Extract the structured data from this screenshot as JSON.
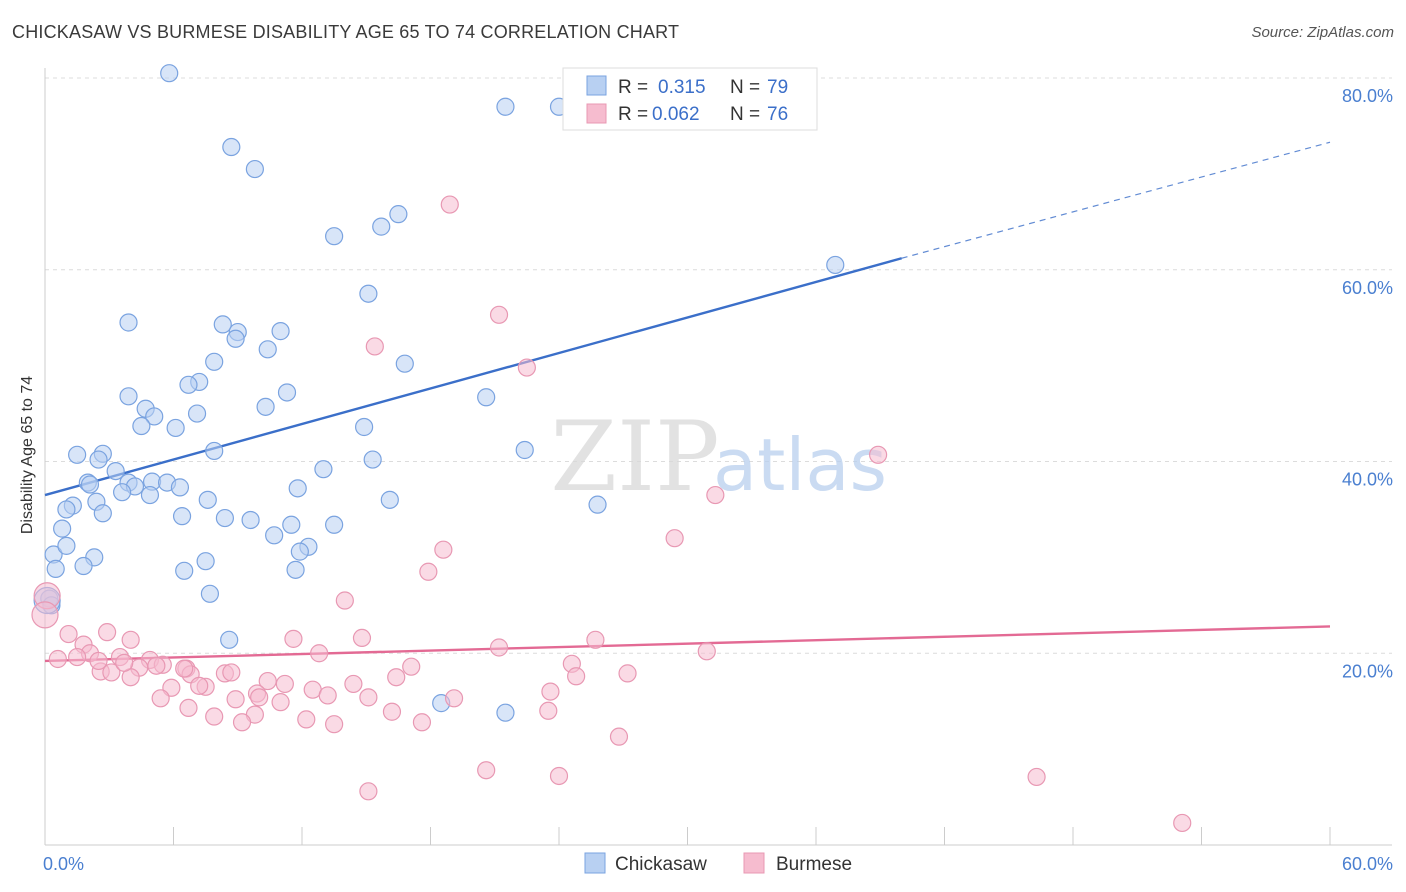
{
  "title": "CHICKASAW VS BURMESE DISABILITY AGE 65 TO 74 CORRELATION CHART",
  "source": "Source: ZipAtlas.com",
  "watermark": {
    "zip": "ZIP",
    "atlas": "atlas"
  },
  "colors": {
    "chickasaw": "#3b6fc9",
    "chickasaw_fill": "#b8d0f2",
    "burmese": "#e36a94",
    "burmese_fill": "#f6bccf",
    "axis_text": "#4a7fd0"
  },
  "chart_data": {
    "type": "scatter",
    "ylabel": "Disability Age 65 to 74",
    "xlim": [
      0,
      60
    ],
    "ylim": [
      0,
      80
    ],
    "x_tick_labels": [
      "0.0%",
      "60.0%"
    ],
    "y_tick_labels": [
      "20.0%",
      "40.0%",
      "60.0%",
      "80.0%"
    ],
    "y_ticks": [
      20,
      40,
      60,
      80
    ],
    "legend": {
      "position": "top-center",
      "rows": [
        {
          "r_label": "R =",
          "r_value": "0.315",
          "n_label": "N =",
          "n_value": "79"
        },
        {
          "r_label": "R =",
          "r_value": "0.062",
          "n_label": "N =",
          "n_value": "76"
        }
      ]
    },
    "series": [
      {
        "name": "Chickasaw",
        "trend": {
          "x0": 0,
          "y0": 36.5,
          "x1": 40,
          "y1": 61.2,
          "dashed_to_x": 60,
          "dashed_to_y": 73.3
        },
        "points": [
          [
            5.8,
            80.5
          ],
          [
            21.5,
            77.0
          ],
          [
            24.0,
            77.0
          ],
          [
            8.7,
            72.8
          ],
          [
            9.8,
            70.5
          ],
          [
            13.5,
            63.5
          ],
          [
            15.7,
            64.5
          ],
          [
            16.5,
            65.8
          ],
          [
            36.9,
            60.5
          ],
          [
            15.1,
            57.5
          ],
          [
            3.9,
            54.5
          ],
          [
            8.3,
            54.3
          ],
          [
            9.0,
            53.5
          ],
          [
            8.9,
            52.8
          ],
          [
            11.0,
            53.6
          ],
          [
            10.4,
            51.7
          ],
          [
            7.9,
            50.4
          ],
          [
            16.8,
            50.2
          ],
          [
            7.2,
            48.3
          ],
          [
            6.7,
            48.0
          ],
          [
            11.3,
            47.2
          ],
          [
            3.9,
            46.8
          ],
          [
            20.6,
            46.7
          ],
          [
            4.7,
            45.5
          ],
          [
            10.3,
            45.7
          ],
          [
            7.1,
            45.0
          ],
          [
            5.1,
            44.7
          ],
          [
            4.5,
            43.7
          ],
          [
            6.1,
            43.5
          ],
          [
            14.9,
            43.6
          ],
          [
            1.5,
            40.7
          ],
          [
            2.7,
            40.8
          ],
          [
            7.9,
            41.1
          ],
          [
            22.4,
            41.2
          ],
          [
            2.5,
            40.2
          ],
          [
            15.3,
            40.2
          ],
          [
            13.0,
            39.2
          ],
          [
            3.3,
            39.0
          ],
          [
            2.0,
            37.8
          ],
          [
            2.1,
            37.6
          ],
          [
            3.9,
            37.8
          ],
          [
            5.0,
            37.9
          ],
          [
            5.7,
            37.8
          ],
          [
            4.2,
            37.4
          ],
          [
            6.3,
            37.3
          ],
          [
            3.6,
            36.8
          ],
          [
            4.9,
            36.5
          ],
          [
            11.8,
            37.2
          ],
          [
            7.6,
            36.0
          ],
          [
            16.1,
            36.0
          ],
          [
            2.4,
            35.8
          ],
          [
            1.3,
            35.4
          ],
          [
            1.0,
            35.0
          ],
          [
            2.7,
            34.6
          ],
          [
            6.4,
            34.3
          ],
          [
            25.8,
            35.5
          ],
          [
            8.4,
            34.1
          ],
          [
            9.6,
            33.9
          ],
          [
            11.5,
            33.4
          ],
          [
            13.5,
            33.4
          ],
          [
            0.8,
            33.0
          ],
          [
            10.7,
            32.3
          ],
          [
            12.3,
            31.1
          ],
          [
            11.9,
            30.6
          ],
          [
            0.4,
            30.3
          ],
          [
            1.0,
            31.2
          ],
          [
            2.3,
            30.0
          ],
          [
            7.5,
            29.6
          ],
          [
            0.5,
            28.8
          ],
          [
            1.8,
            29.1
          ],
          [
            6.5,
            28.6
          ],
          [
            11.7,
            28.7
          ],
          [
            7.7,
            26.2
          ],
          [
            0.2,
            25.7
          ],
          [
            0.3,
            25.0
          ],
          [
            8.6,
            21.4
          ],
          [
            18.5,
            14.8
          ],
          [
            21.5,
            13.8
          ],
          [
            0.1,
            25.5
          ]
        ]
      },
      {
        "name": "Burmese",
        "trend": {
          "x0": 0,
          "y0": 19.2,
          "x1": 60,
          "y1": 22.8
        },
        "points": [
          [
            0.1,
            26.0
          ],
          [
            0.0,
            24.0
          ],
          [
            18.9,
            66.8
          ],
          [
            21.2,
            55.3
          ],
          [
            15.4,
            52.0
          ],
          [
            22.5,
            49.8
          ],
          [
            38.9,
            40.7
          ],
          [
            31.3,
            36.5
          ],
          [
            29.4,
            32.0
          ],
          [
            18.6,
            30.8
          ],
          [
            17.9,
            28.5
          ],
          [
            14.0,
            25.5
          ],
          [
            1.1,
            22.0
          ],
          [
            2.9,
            22.2
          ],
          [
            4.0,
            21.4
          ],
          [
            11.6,
            21.5
          ],
          [
            14.8,
            21.6
          ],
          [
            25.7,
            21.4
          ],
          [
            1.8,
            20.9
          ],
          [
            2.1,
            20.0
          ],
          [
            3.5,
            19.6
          ],
          [
            4.9,
            19.3
          ],
          [
            5.5,
            18.8
          ],
          [
            6.6,
            18.4
          ],
          [
            2.6,
            18.1
          ],
          [
            4.4,
            18.5
          ],
          [
            5.2,
            18.7
          ],
          [
            0.6,
            19.4
          ],
          [
            21.2,
            20.6
          ],
          [
            12.8,
            20.0
          ],
          [
            30.9,
            20.2
          ],
          [
            17.1,
            18.6
          ],
          [
            24.6,
            18.9
          ],
          [
            1.5,
            19.6
          ],
          [
            3.1,
            18.0
          ],
          [
            6.8,
            17.8
          ],
          [
            8.4,
            17.9
          ],
          [
            27.2,
            17.9
          ],
          [
            24.8,
            17.6
          ],
          [
            16.4,
            17.5
          ],
          [
            10.4,
            17.1
          ],
          [
            11.2,
            16.8
          ],
          [
            5.9,
            16.4
          ],
          [
            7.5,
            16.5
          ],
          [
            14.4,
            16.8
          ],
          [
            12.5,
            16.2
          ],
          [
            13.2,
            15.6
          ],
          [
            15.1,
            15.4
          ],
          [
            19.1,
            15.3
          ],
          [
            23.6,
            16.0
          ],
          [
            9.9,
            15.8
          ],
          [
            8.9,
            15.2
          ],
          [
            10.0,
            15.4
          ],
          [
            5.4,
            15.3
          ],
          [
            11.0,
            14.9
          ],
          [
            6.7,
            14.3
          ],
          [
            9.8,
            13.6
          ],
          [
            7.9,
            13.4
          ],
          [
            12.2,
            13.1
          ],
          [
            16.2,
            13.9
          ],
          [
            9.2,
            12.8
          ],
          [
            13.5,
            12.6
          ],
          [
            17.6,
            12.8
          ],
          [
            23.5,
            14.0
          ],
          [
            26.8,
            11.3
          ],
          [
            20.6,
            7.8
          ],
          [
            24.0,
            7.2
          ],
          [
            15.1,
            5.6
          ],
          [
            46.3,
            7.1
          ],
          [
            53.1,
            2.3
          ],
          [
            6.5,
            18.4
          ],
          [
            4.0,
            17.5
          ],
          [
            8.7,
            18.0
          ],
          [
            7.2,
            16.6
          ],
          [
            3.7,
            19.0
          ],
          [
            2.5,
            19.2
          ]
        ]
      }
    ]
  },
  "bottom_legend": [
    {
      "label": "Chickasaw"
    },
    {
      "label": "Burmese"
    }
  ]
}
